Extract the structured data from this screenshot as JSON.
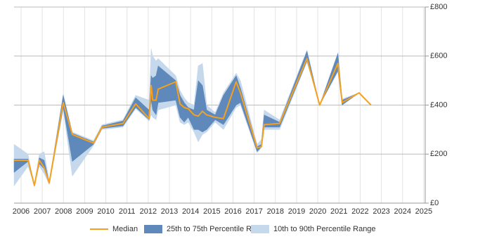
{
  "chart_data": {
    "type": "band-line",
    "x": [
      2005.67,
      2006.33,
      2006.63,
      2006.86,
      2007.09,
      2007.33,
      2007.99,
      2008.42,
      2009.42,
      2009.82,
      2010.81,
      2011.41,
      2012.04,
      2012.14,
      2012.21,
      2012.37,
      2012.47,
      2013.3,
      2013.5,
      2013.7,
      2013.89,
      2014.16,
      2014.36,
      2014.56,
      2014.76,
      2015.16,
      2015.55,
      2016.15,
      2016.35,
      2017.14,
      2017.34,
      2017.47,
      2018.2,
      2019.49,
      2020.09,
      2020.95,
      2021.15,
      2021.95,
      2022.51
    ],
    "series": [
      {
        "name": "10th to 90th Percentile Range",
        "color": "#c6d8ec",
        "lower": [
          70,
          150,
          72,
          150,
          120,
          75,
          380,
          110,
          235,
          300,
          310,
          385,
          335,
          360,
          350,
          340,
          380,
          400,
          330,
          320,
          330,
          290,
          250,
          280,
          290,
          330,
          300,
          390,
          400,
          205,
          225,
          300,
          300,
          575,
          400,
          535,
          400,
          450,
          400
        ],
        "upper": [
          240,
          200,
          72,
          200,
          210,
          90,
          445,
          290,
          255,
          320,
          340,
          440,
          420,
          630,
          600,
          580,
          590,
          520,
          460,
          430,
          410,
          400,
          560,
          570,
          400,
          370,
          450,
          530,
          500,
          240,
          260,
          380,
          340,
          625,
          400,
          615,
          425,
          450,
          400
        ]
      },
      {
        "name": "25th to 75th Percentile Range",
        "color": "#5e89ba",
        "lower": [
          125,
          170,
          72,
          160,
          140,
          80,
          390,
          170,
          240,
          305,
          315,
          390,
          340,
          420,
          380,
          360,
          410,
          420,
          350,
          330,
          350,
          300,
          300,
          290,
          300,
          340,
          320,
          400,
          410,
          210,
          230,
          310,
          310,
          580,
          400,
          540,
          400,
          450,
          400
        ],
        "upper": [
          180,
          180,
          72,
          185,
          175,
          85,
          440,
          285,
          250,
          315,
          335,
          430,
          380,
          520,
          510,
          520,
          560,
          500,
          440,
          410,
          390,
          380,
          500,
          480,
          380,
          360,
          440,
          520,
          470,
          230,
          240,
          360,
          330,
          620,
          400,
          610,
          420,
          450,
          400
        ]
      },
      {
        "name": "Median",
        "color": "#f5a01f",
        "values": [
          175,
          175,
          72,
          175,
          145,
          83,
          410,
          280,
          245,
          310,
          325,
          405,
          345,
          480,
          420,
          420,
          465,
          495,
          405,
          390,
          385,
          360,
          355,
          375,
          360,
          350,
          345,
          495,
          450,
          225,
          230,
          320,
          325,
          590,
          400,
          570,
          410,
          450,
          400
        ]
      }
    ],
    "xlim": [
      2005.67,
      2025.07
    ],
    "xticks": [
      2006,
      2007,
      2008,
      2009,
      2010,
      2011,
      2012,
      2013,
      2014,
      2015,
      2016,
      2017,
      2018,
      2019,
      2020,
      2021,
      2022,
      2023,
      2024,
      2025
    ],
    "ylim": [
      0,
      800
    ],
    "yticks": [
      {
        "value": 0,
        "label": "£0"
      },
      {
        "value": 200,
        "label": "£200"
      },
      {
        "value": 400,
        "label": "£400"
      },
      {
        "value": 600,
        "label": "£600"
      },
      {
        "value": 800,
        "label": "£800"
      }
    ],
    "grid": true
  }
}
